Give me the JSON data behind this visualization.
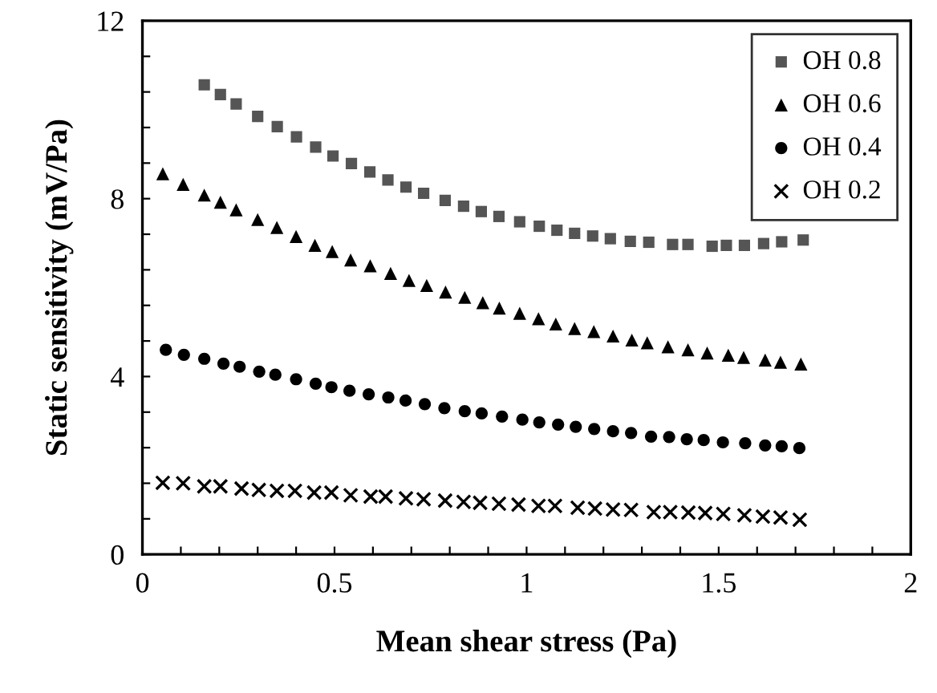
{
  "chart_data": {
    "type": "scatter",
    "xlabel": "Mean shear stress (Pa)",
    "ylabel": "Static sensitivity (mV/Pa)",
    "xlim": [
      0,
      2
    ],
    "ylim": [
      0,
      12
    ],
    "xticks": [
      0,
      {
        "value": 0.1,
        "label": null
      },
      {
        "value": 0.2,
        "label": null
      },
      {
        "value": 0.3,
        "label": null
      },
      {
        "value": 0.4,
        "label": null
      },
      0.5,
      {
        "value": 0.6,
        "label": null
      },
      {
        "value": 0.7,
        "label": null
      },
      {
        "value": 0.8,
        "label": null
      },
      {
        "value": 0.9,
        "label": null
      },
      1,
      {
        "value": 1.1,
        "label": null
      },
      {
        "value": 1.2,
        "label": null
      },
      {
        "value": 1.3,
        "label": null
      },
      {
        "value": 1.4,
        "label": null
      },
      1.5,
      {
        "value": 1.6,
        "label": null
      },
      {
        "value": 1.7,
        "label": null
      },
      {
        "value": 1.8,
        "label": null
      },
      {
        "value": 1.9,
        "label": null
      },
      2
    ],
    "yticks": [
      0,
      {
        "value": 0.8,
        "label": null
      },
      {
        "value": 1.6,
        "label": null
      },
      {
        "value": 2.4,
        "label": null
      },
      {
        "value": 3.2,
        "label": null
      },
      4,
      {
        "value": 4.8,
        "label": null
      },
      {
        "value": 5.6,
        "label": null
      },
      {
        "value": 6.4,
        "label": null
      },
      {
        "value": 7.2,
        "label": null
      },
      8,
      {
        "value": 8.8,
        "label": null
      },
      {
        "value": 9.6,
        "label": null
      },
      {
        "value": 10.4,
        "label": null
      },
      {
        "value": 11.2,
        "label": null
      },
      12
    ],
    "grid": false,
    "legend": "top right",
    "series": [
      {
        "name": "OH 0.8",
        "color": "#555555",
        "marker": "square",
        "x": [
          0.161,
          0.203,
          0.244,
          0.3,
          0.351,
          0.401,
          0.451,
          0.496,
          0.544,
          0.592,
          0.639,
          0.686,
          0.732,
          0.788,
          0.836,
          0.882,
          0.928,
          0.982,
          1.033,
          1.079,
          1.125,
          1.172,
          1.218,
          1.27,
          1.318,
          1.38,
          1.42,
          1.483,
          1.52,
          1.567,
          1.617,
          1.664,
          1.72
        ],
        "values": [
          10.56,
          10.34,
          10.13,
          9.85,
          9.62,
          9.39,
          9.16,
          8.96,
          8.79,
          8.6,
          8.42,
          8.26,
          8.12,
          7.96,
          7.83,
          7.71,
          7.6,
          7.48,
          7.38,
          7.29,
          7.22,
          7.16,
          7.1,
          7.04,
          7.02,
          6.97,
          6.97,
          6.93,
          6.95,
          6.95,
          6.99,
          7.03,
          7.07
        ]
      },
      {
        "name": "OH 0.6",
        "color": "#000000",
        "marker": "triangle",
        "x": [
          0.053,
          0.106,
          0.161,
          0.203,
          0.244,
          0.3,
          0.35,
          0.4,
          0.449,
          0.494,
          0.542,
          0.593,
          0.646,
          0.694,
          0.74,
          0.789,
          0.839,
          0.886,
          0.929,
          0.982,
          1.031,
          1.076,
          1.125,
          1.175,
          1.225,
          1.274,
          1.314,
          1.368,
          1.42,
          1.47,
          1.525,
          1.565,
          1.621,
          1.661,
          1.714
        ],
        "values": [
          8.56,
          8.32,
          8.08,
          7.92,
          7.75,
          7.53,
          7.35,
          7.15,
          6.95,
          6.81,
          6.62,
          6.49,
          6.32,
          6.16,
          6.05,
          5.9,
          5.78,
          5.66,
          5.54,
          5.42,
          5.3,
          5.18,
          5.08,
          5.01,
          4.91,
          4.82,
          4.76,
          4.67,
          4.6,
          4.53,
          4.48,
          4.43,
          4.37,
          4.32,
          4.28
        ]
      },
      {
        "name": "OH 0.4",
        "color": "#000000",
        "marker": "circle",
        "x": [
          0.061,
          0.108,
          0.161,
          0.211,
          0.253,
          0.304,
          0.346,
          0.4,
          0.451,
          0.492,
          0.539,
          0.589,
          0.64,
          0.685,
          0.735,
          0.786,
          0.839,
          0.883,
          0.936,
          0.989,
          1.033,
          1.082,
          1.128,
          1.176,
          1.225,
          1.272,
          1.324,
          1.371,
          1.417,
          1.461,
          1.511,
          1.569,
          1.621,
          1.664,
          1.71
        ],
        "values": [
          4.6,
          4.49,
          4.4,
          4.29,
          4.22,
          4.11,
          4.04,
          3.94,
          3.84,
          3.76,
          3.68,
          3.6,
          3.53,
          3.46,
          3.38,
          3.29,
          3.22,
          3.17,
          3.1,
          3.03,
          2.97,
          2.92,
          2.87,
          2.82,
          2.77,
          2.73,
          2.65,
          2.64,
          2.59,
          2.57,
          2.52,
          2.5,
          2.45,
          2.43,
          2.39
        ]
      },
      {
        "name": "OH 0.2",
        "color": "#000000",
        "marker": "cross",
        "x": [
          0.053,
          0.106,
          0.161,
          0.203,
          0.258,
          0.303,
          0.35,
          0.397,
          0.447,
          0.492,
          0.542,
          0.594,
          0.633,
          0.686,
          0.732,
          0.788,
          0.836,
          0.879,
          0.928,
          0.979,
          1.031,
          1.074,
          1.133,
          1.178,
          1.225,
          1.272,
          1.331,
          1.374,
          1.421,
          1.465,
          1.512,
          1.567,
          1.615,
          1.661,
          1.711
        ],
        "values": [
          1.61,
          1.6,
          1.53,
          1.53,
          1.48,
          1.45,
          1.43,
          1.43,
          1.39,
          1.39,
          1.33,
          1.3,
          1.3,
          1.26,
          1.24,
          1.21,
          1.18,
          1.16,
          1.14,
          1.12,
          1.09,
          1.09,
          1.05,
          1.03,
          1.01,
          1.0,
          0.95,
          0.95,
          0.94,
          0.93,
          0.91,
          0.88,
          0.85,
          0.83,
          0.78
        ]
      }
    ]
  }
}
